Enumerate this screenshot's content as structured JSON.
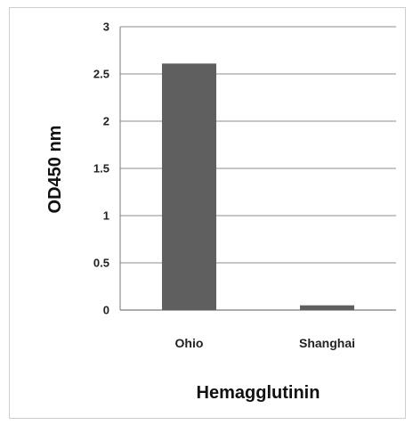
{
  "chart_data": {
    "type": "bar",
    "categories": [
      "Ohio",
      "Shanghai"
    ],
    "values": [
      2.61,
      0.05
    ],
    "xlabel": "Hemagglutinin",
    "ylabel": "OD450 nm",
    "ylim": [
      0,
      3
    ],
    "yticks": [
      "0",
      "0.5",
      "1",
      "1.5",
      "2",
      "2.5",
      "3"
    ],
    "ytick_values": [
      0,
      0.5,
      1,
      1.5,
      2,
      2.5,
      3
    ],
    "grid": true,
    "bar_color": "#5f5f5f",
    "grid_color": "#8c8c8c"
  }
}
